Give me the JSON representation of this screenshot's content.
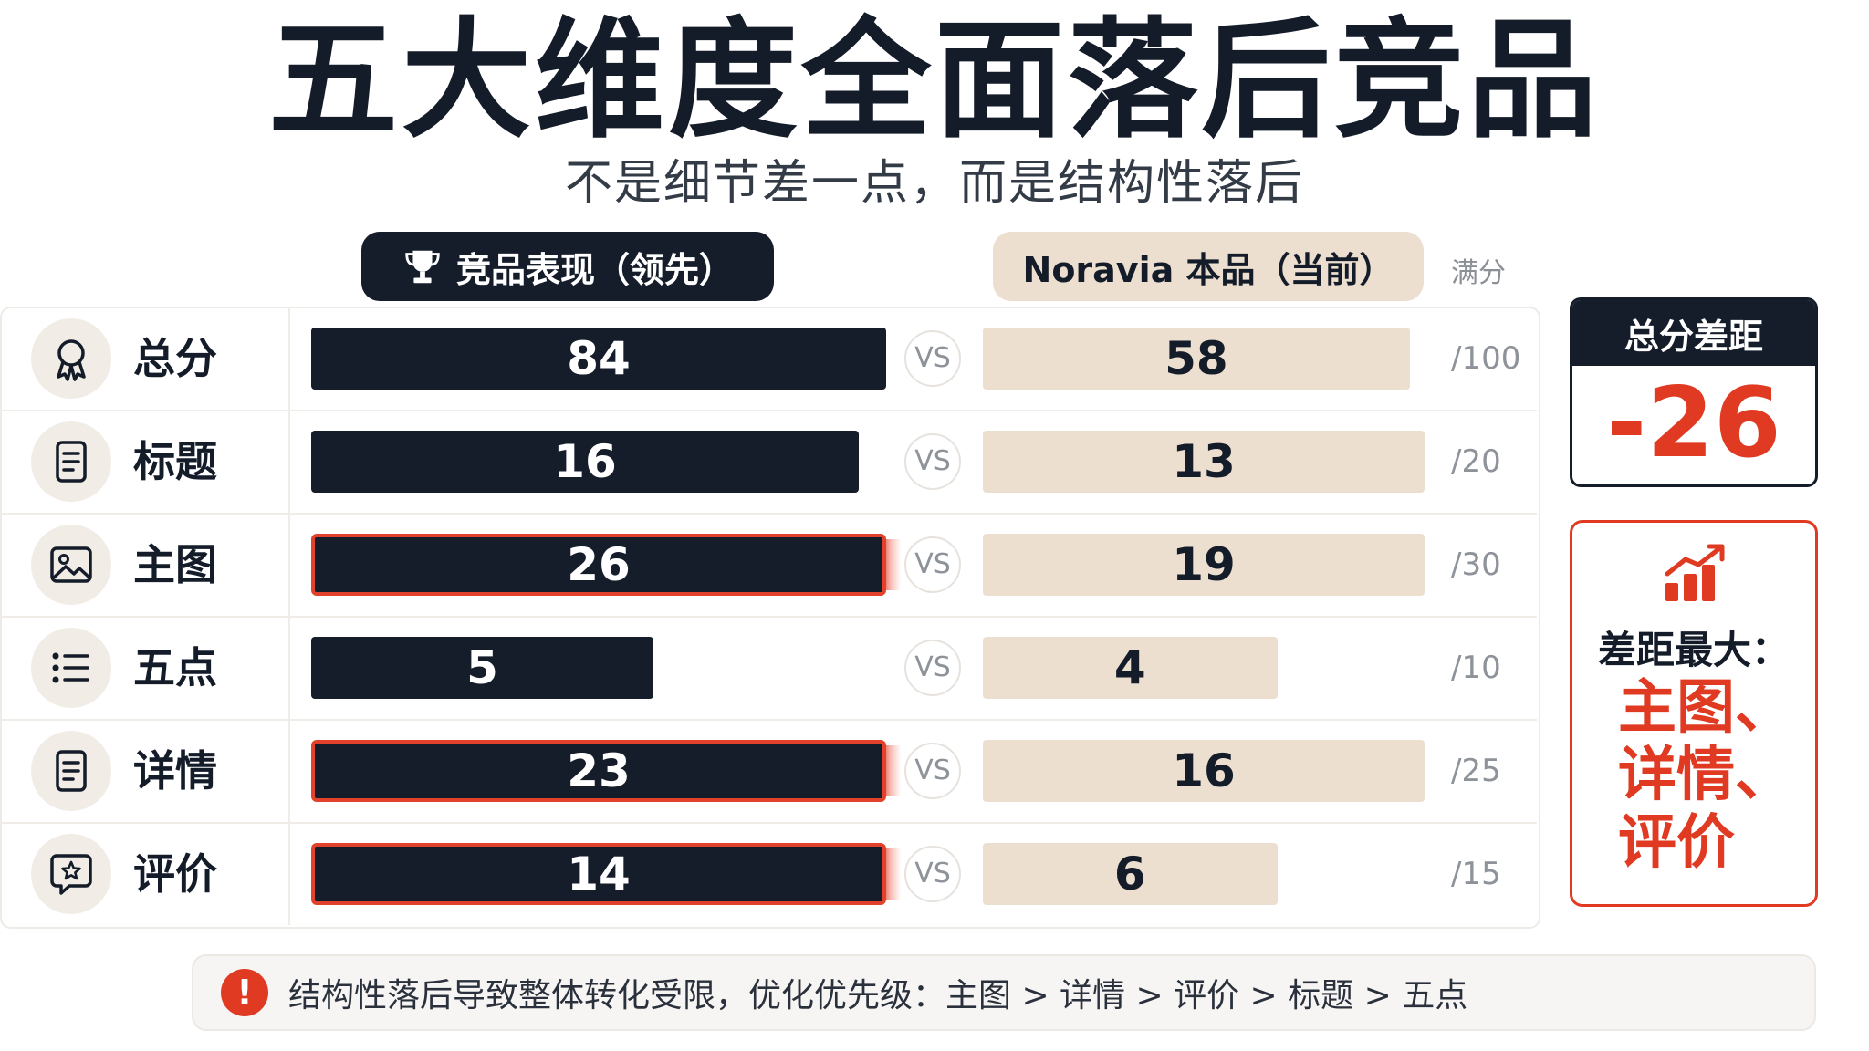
{
  "title": "五大维度全面落后竞品",
  "subtitle": "不是细节差一点，而是结构性落后",
  "legend": {
    "competitor": "竞品表现（领先）",
    "own": "Noravia 本品（当前）",
    "full_score": "满分",
    "trophy_icon": "trophy-icon"
  },
  "vs_label": "VS",
  "gap_card": {
    "title": "总分差距",
    "value": "-26"
  },
  "max_gap_card": {
    "title": "差距最大：",
    "items": [
      "主图、",
      "详情、",
      "评价"
    ],
    "icon": "bar-chart-up-icon"
  },
  "footer": {
    "icon": "exclamation-icon",
    "text": "结构性落后导致整体转化受限，优化优先级：主图 > 详情 > 评价 > 标题 > 五点"
  },
  "colors": {
    "dark": "#151c2a",
    "beige": "#ecdfcf",
    "accent": "#e03a22"
  },
  "chart_data": {
    "type": "bar",
    "title": "五大维度全面落后竞品",
    "subtitle": "不是细节差一点，而是结构性落后",
    "categories": [
      "总分",
      "标题",
      "主图",
      "五点",
      "详情",
      "评价"
    ],
    "category_icons": [
      "award-icon",
      "document-icon",
      "image-icon",
      "list-icon",
      "document-icon",
      "review-star-icon"
    ],
    "max_labels": [
      "/100",
      "/20",
      "/30",
      "/10",
      "/25",
      "/15"
    ],
    "max_values": [
      100,
      20,
      30,
      10,
      25,
      15
    ],
    "series": [
      {
        "name": "竞品表现（领先）",
        "values": [
          84,
          16,
          26,
          5,
          23,
          14
        ]
      },
      {
        "name": "Noravia 本品（当前）",
        "values": [
          58,
          13,
          19,
          4,
          16,
          6
        ]
      }
    ],
    "highlighted": [
      "主图",
      "详情",
      "评价"
    ]
  }
}
